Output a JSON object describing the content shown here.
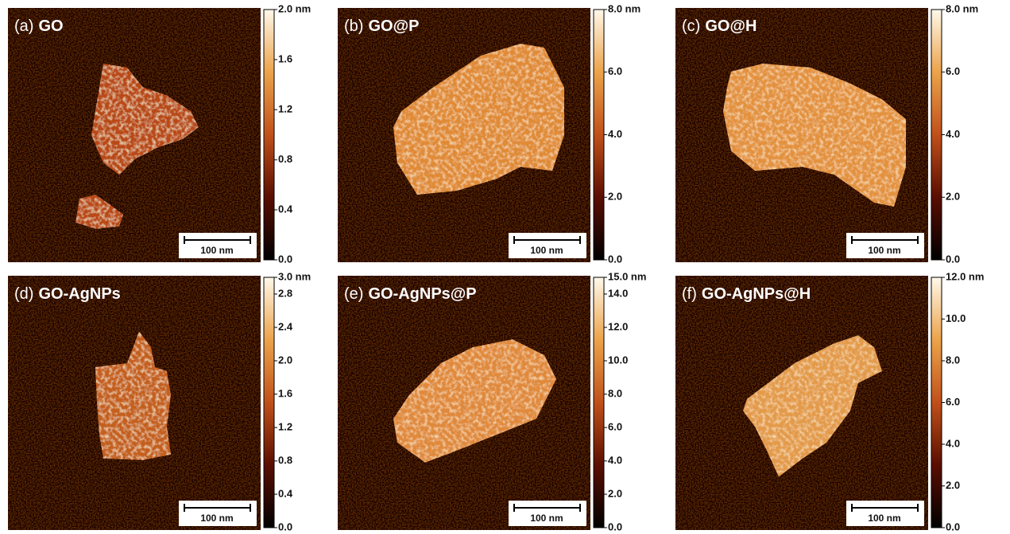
{
  "panels": [
    {
      "label": "(a)",
      "title": "GO",
      "scale_bar": "100 nm",
      "colorbar": {
        "lim": [
          0,
          2
        ],
        "ticks": [
          {
            "value": 2,
            "label": "2.0 nm"
          },
          1.6,
          1.2,
          0.8,
          0.4,
          {
            "value": 0,
            "label": "0.0"
          }
        ]
      }
    },
    {
      "label": "(b)",
      "title": "GO@P",
      "scale_bar": "100 nm",
      "colorbar": {
        "lim": [
          0,
          8
        ],
        "ticks": [
          {
            "value": 8,
            "label": "8.0 nm"
          },
          {
            "value": 6,
            "label": "6.0"
          },
          {
            "value": 4,
            "label": "4.0"
          },
          {
            "value": 2,
            "label": "2.0"
          },
          {
            "value": 0,
            "label": "0.0"
          }
        ]
      }
    },
    {
      "label": "(c)",
      "title": "GO@H",
      "scale_bar": "100 nm",
      "colorbar": {
        "lim": [
          0,
          8
        ],
        "ticks": [
          {
            "value": 8,
            "label": "8.0 nm"
          },
          {
            "value": 6,
            "label": "6.0"
          },
          {
            "value": 4,
            "label": "4.0"
          },
          {
            "value": 2,
            "label": "2.0"
          },
          {
            "value": 0,
            "label": "0.0"
          }
        ]
      }
    },
    {
      "label": "(d)",
      "title": "GO-AgNPs",
      "scale_bar": "100 nm",
      "colorbar": {
        "lim": [
          0,
          3
        ],
        "ticks": [
          {
            "value": 3,
            "label": "3.0 nm"
          },
          2.8,
          2.4,
          {
            "value": 2,
            "label": "2.0"
          },
          1.6,
          1.2,
          0.8,
          0.4,
          {
            "value": 0,
            "label": "0.0"
          }
        ]
      }
    },
    {
      "label": "(e)",
      "title": "GO-AgNPs@P",
      "scale_bar": "100 nm",
      "colorbar": {
        "lim": [
          0,
          15
        ],
        "ticks": [
          {
            "value": 15,
            "label": "15.0 nm"
          },
          {
            "value": 14,
            "label": "14.0"
          },
          {
            "value": 12,
            "label": "12.0"
          },
          {
            "value": 10,
            "label": "10.0"
          },
          {
            "value": 8,
            "label": "8.0"
          },
          {
            "value": 6,
            "label": "6.0"
          },
          {
            "value": 4,
            "label": "4.0"
          },
          {
            "value": 2,
            "label": "2.0"
          },
          {
            "value": 0,
            "label": "0.0"
          }
        ]
      }
    },
    {
      "label": "(f)",
      "title": "GO-AgNPs@H",
      "scale_bar": "100 nm",
      "colorbar": {
        "lim": [
          0,
          12
        ],
        "ticks": [
          {
            "value": 12,
            "label": "12.0 nm"
          },
          {
            "value": 10,
            "label": "10.0"
          },
          {
            "value": 8,
            "label": "8.0"
          },
          {
            "value": 6,
            "label": "6.0"
          },
          {
            "value": 4,
            "label": "4.0"
          },
          {
            "value": 2,
            "label": "2.0"
          },
          {
            "value": 0,
            "label": "0.0"
          }
        ]
      }
    }
  ]
}
